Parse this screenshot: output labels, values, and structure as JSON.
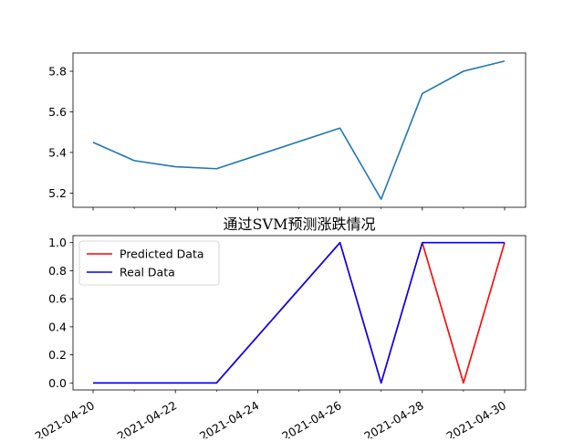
{
  "chart_data": [
    {
      "type": "line",
      "title": "",
      "xlabel": "",
      "ylabel": "",
      "x": [
        "2021-04-20",
        "2021-04-21",
        "2021-04-22",
        "2021-04-23",
        "2021-04-26",
        "2021-04-27",
        "2021-04-28",
        "2021-04-29",
        "2021-04-30"
      ],
      "series": [
        {
          "values": [
            5.45,
            5.36,
            5.33,
            5.32,
            5.52,
            5.17,
            5.69,
            5.8,
            5.85
          ],
          "color": "#1f77b4"
        }
      ],
      "ylim": [
        5.13,
        5.89
      ],
      "yticks": [
        5.2,
        5.4,
        5.6,
        5.8
      ],
      "ytick_labels": [
        "5.2",
        "5.4",
        "5.6",
        "5.8"
      ],
      "grid": false,
      "show_xtick_labels": false
    },
    {
      "type": "line",
      "title": "通过SVM预测涨跌情况",
      "xlabel": "",
      "ylabel": "",
      "x": [
        "2021-04-20",
        "2021-04-21",
        "2021-04-22",
        "2021-04-23",
        "2021-04-26",
        "2021-04-27",
        "2021-04-28",
        "2021-04-29",
        "2021-04-30"
      ],
      "series": [
        {
          "name": "Predicted Data",
          "values": [
            0,
            0,
            0,
            0,
            1,
            0,
            1,
            0,
            1
          ],
          "color": "#ff0000"
        },
        {
          "name": "Real Data",
          "values": [
            0,
            0,
            0,
            0,
            1,
            0,
            1,
            1,
            1
          ],
          "color": "#0000ff"
        }
      ],
      "ylim": [
        -0.05,
        1.05
      ],
      "yticks": [
        0.0,
        0.2,
        0.4,
        0.6,
        0.8,
        1.0
      ],
      "ytick_labels": [
        "0.0",
        "0.2",
        "0.4",
        "0.6",
        "0.8",
        "1.0"
      ],
      "legend": "upper-left",
      "grid": false,
      "show_xtick_labels": true
    }
  ],
  "x_axis": {
    "ticks": [
      "2021-04-20",
      "2021-04-21",
      "2021-04-22",
      "2021-04-23",
      "2021-04-24",
      "2021-04-25",
      "2021-04-26",
      "2021-04-27",
      "2021-04-28",
      "2021-04-29",
      "2021-04-30"
    ],
    "major_labels": [
      "2021-04-20",
      "2021-04-22",
      "2021-04-24",
      "2021-04-26",
      "2021-04-28",
      "2021-04-30"
    ],
    "label_rotation": "30"
  }
}
